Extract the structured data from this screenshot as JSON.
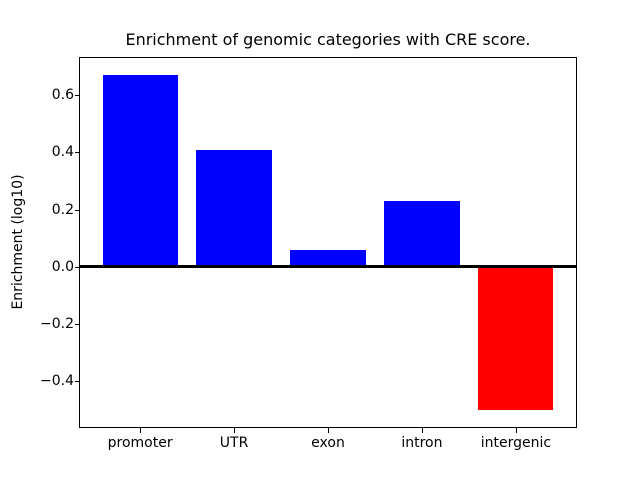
{
  "chart_data": {
    "type": "bar",
    "title": "Enrichment of genomic categories with CRE score.",
    "xlabel": "",
    "ylabel": "Enrichment (log10)",
    "categories": [
      "promoter",
      "UTR",
      "exon",
      "intron",
      "intergenic"
    ],
    "values": [
      0.67,
      0.41,
      0.06,
      0.23,
      -0.5
    ],
    "bar_colors": [
      "#0000ff",
      "#0000ff",
      "#0000ff",
      "#0000ff",
      "#ff0000"
    ],
    "positive_color": "#0000ff",
    "negative_color": "#ff0000",
    "bar_width": 0.8,
    "xlim": [
      -0.64,
      4.64
    ],
    "ylim": [
      -0.56,
      0.73
    ],
    "yticks": [
      0.6,
      0.4,
      0.2,
      0.0,
      -0.2,
      -0.4
    ],
    "ytick_labels": [
      "0.6",
      "0.4",
      "0.2",
      "0.0",
      "−0.2",
      "−0.4"
    ],
    "zero_line": true,
    "grid": false,
    "legend": false,
    "background": "#ffffff"
  }
}
